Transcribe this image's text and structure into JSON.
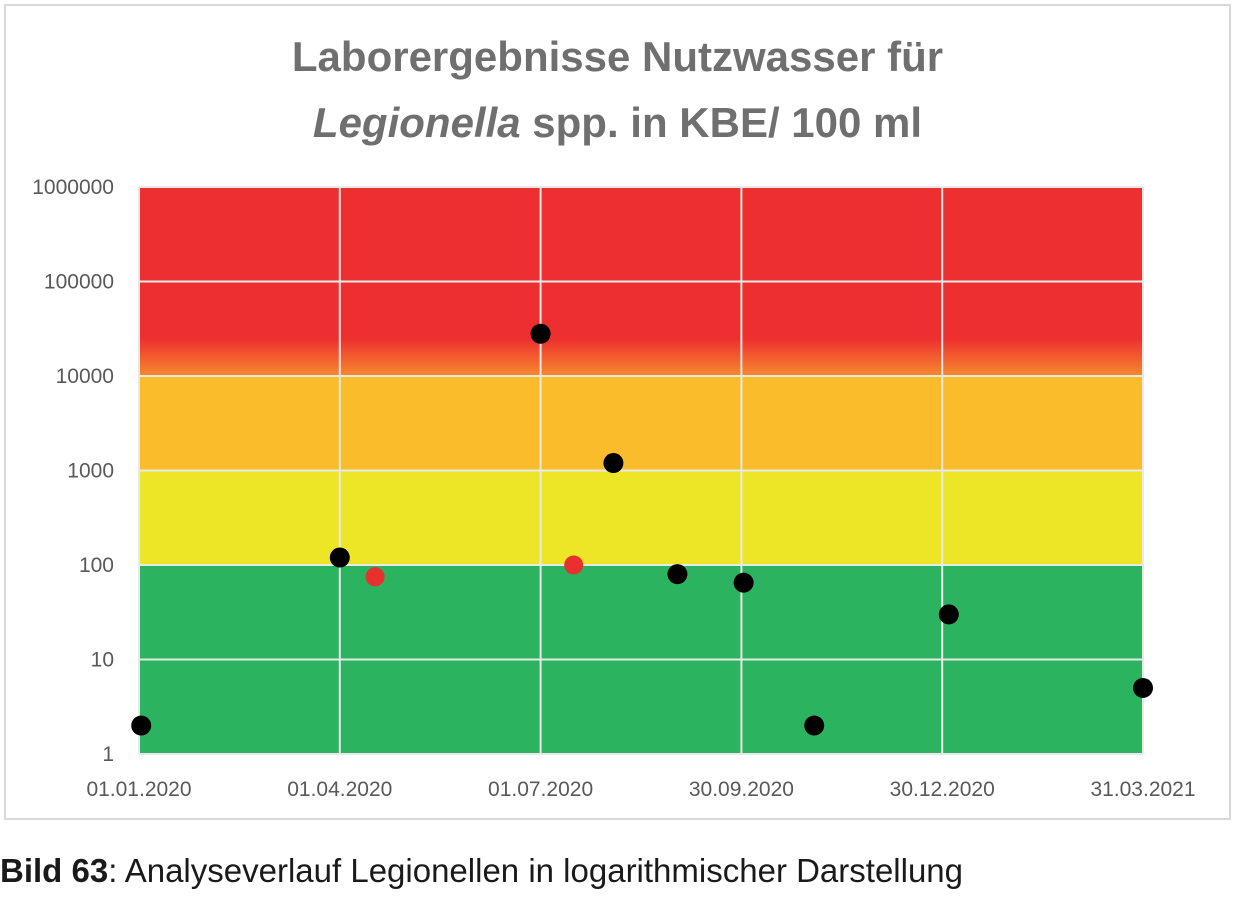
{
  "chart_data": {
    "type": "scatter",
    "title_line1": "Laborergebnisse Nutzwasser für",
    "title_line2_italic": "Legionella",
    "title_line2_rest": " spp. in KBE/ 100 ml",
    "y_scale": "log",
    "ylim": [
      1,
      1000000
    ],
    "y_tick_labels": [
      "1000000",
      "100000",
      "10000",
      "1000",
      "100",
      "10",
      "1"
    ],
    "x_range": [
      "2020-01-01",
      "2021-03-31"
    ],
    "x_tick_labels": [
      "01.01.2020",
      "01.04.2020",
      "01.07.2020",
      "30.09.2020",
      "30.12.2020",
      "31.03.2021"
    ],
    "x_tick_dates": [
      "2020-01-01",
      "2020-04-01",
      "2020-07-01",
      "2020-09-30",
      "2020-12-30",
      "2021-03-31"
    ],
    "grid": true,
    "bands": [
      {
        "from": 1,
        "to": 100,
        "color": "#2bb35f"
      },
      {
        "from": 100,
        "to": 1000,
        "color": "#ede627"
      },
      {
        "from": 1000,
        "to": 10000,
        "color": "#fbbc2c"
      },
      {
        "from": 10000,
        "to": 1000000,
        "color": "#ee2f2f"
      }
    ],
    "series": [
      {
        "color": "#000000",
        "points": [
          {
            "x": "2020-01-02",
            "y": 2
          },
          {
            "x": "2020-04-01",
            "y": 120
          },
          {
            "x": "2020-07-01",
            "y": 28000
          },
          {
            "x": "2020-08-03",
            "y": 1200
          },
          {
            "x": "2020-09-01",
            "y": 80
          },
          {
            "x": "2020-10-01",
            "y": 65
          },
          {
            "x": "2020-11-02",
            "y": 2
          },
          {
            "x": "2021-01-02",
            "y": 30
          },
          {
            "x": "2021-03-31",
            "y": 5
          }
        ]
      },
      {
        "color": "#e8302f",
        "points": [
          {
            "x": "2020-04-17",
            "y": 75
          },
          {
            "x": "2020-07-16",
            "y": 100
          }
        ]
      }
    ]
  },
  "caption": {
    "label": "Bild 63",
    "text": ": Analyseverlauf Legionellen in logarithmischer Darstellung"
  }
}
